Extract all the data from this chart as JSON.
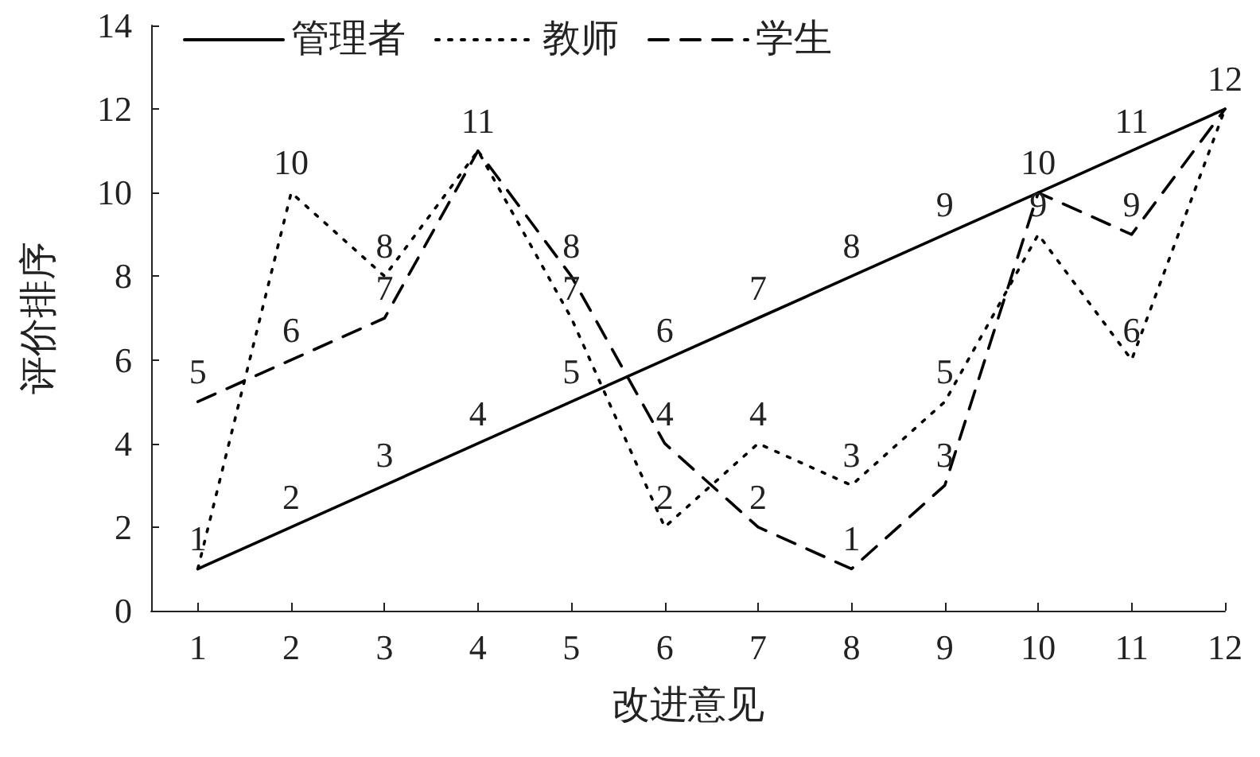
{
  "chart_data": {
    "type": "line",
    "xlabel": "改进意见",
    "ylabel": "评价排序",
    "x": [
      1,
      2,
      3,
      4,
      5,
      6,
      7,
      8,
      9,
      10,
      11,
      12
    ],
    "series": [
      {
        "name": "管理者",
        "color": "#000000",
        "line_style": "solid",
        "values": [
          1,
          2,
          3,
          4,
          5,
          6,
          7,
          8,
          9,
          10,
          11,
          12
        ],
        "value_labels": [
          "1",
          "2",
          "3",
          "4",
          "5",
          "6",
          "7",
          "8",
          "9",
          "10",
          "11",
          "12"
        ]
      },
      {
        "name": "教师",
        "color": "#000000",
        "line_style": "dotted",
        "values": [
          1,
          10,
          8,
          11,
          7,
          2,
          4,
          3,
          5,
          9,
          6,
          12
        ],
        "value_labels": [
          null,
          "10",
          "8",
          "11",
          "7",
          "2",
          "4",
          "3",
          "5",
          "9",
          "6",
          null
        ]
      },
      {
        "name": "学生",
        "color": "#000000",
        "line_style": "dashed",
        "values": [
          5,
          6,
          7,
          11,
          8,
          4,
          2,
          1,
          3,
          10,
          9,
          12
        ],
        "value_labels": [
          "5",
          "6",
          "7",
          null,
          "8",
          "4",
          "2",
          "1",
          "3",
          null,
          "9",
          null
        ]
      }
    ],
    "xlim": [
      0.5,
      12
    ],
    "xticks": [
      1,
      2,
      3,
      4,
      5,
      6,
      7,
      8,
      9,
      10,
      11,
      12
    ],
    "ylim": [
      0,
      14
    ],
    "yticks": [
      0,
      2,
      4,
      6,
      8,
      10,
      12,
      14
    ],
    "grid": false,
    "legend": "top left",
    "marker": "none"
  }
}
